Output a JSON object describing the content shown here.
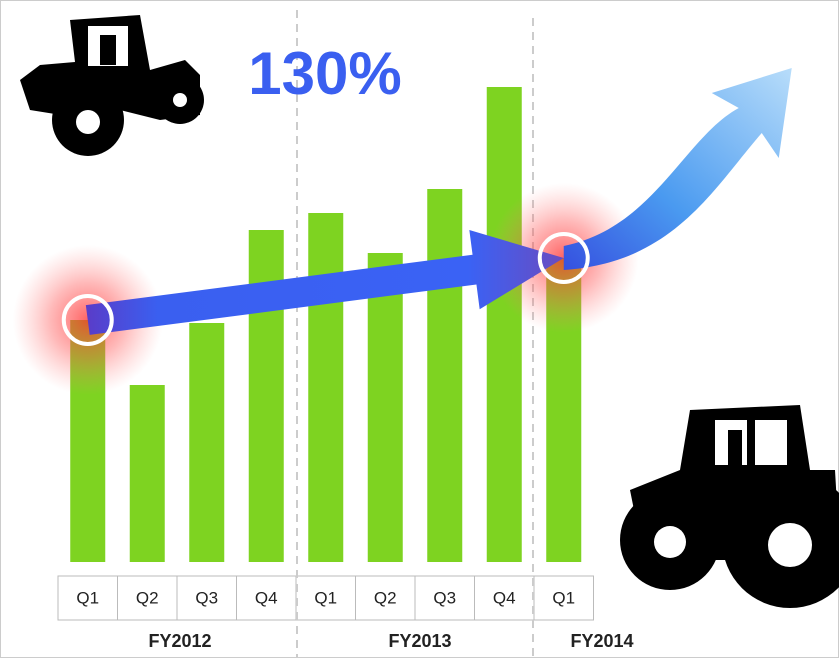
{
  "chart_data": {
    "type": "bar",
    "title": "130%",
    "categories": [
      "Q1",
      "Q2",
      "Q3",
      "Q4",
      "Q1",
      "Q2",
      "Q3",
      "Q4",
      "Q1"
    ],
    "groups": [
      "FY2012",
      "FY2013",
      "FY2014"
    ],
    "values": [
      242,
      177,
      239,
      332,
      349,
      309,
      373,
      475,
      304
    ],
    "color": "#7ed321",
    "ylim": [
      0,
      500
    ]
  }
}
